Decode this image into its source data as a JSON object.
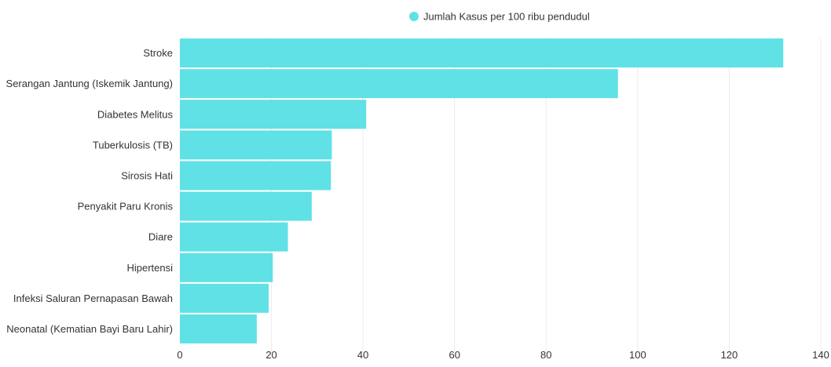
{
  "chart_data": {
    "type": "bar",
    "orientation": "horizontal",
    "categories": [
      "Stroke",
      "Serangan Jantung (Iskemik Jantung)",
      "Diabetes Melitus",
      "Tuberkulosis (TB)",
      "Sirosis Hati",
      "Penyakit Paru Kronis",
      "Diare",
      "Hipertensi",
      "Infeksi Saluran Pernapasan Bawah",
      "Neonatal (Kematian Bayi Baru Lahir)"
    ],
    "series": [
      {
        "name": "Jumlah Kasus per 100 ribu pendudul",
        "color": "#5fe1e6",
        "values": [
          131.8,
          95.7,
          40.7,
          33.2,
          33.0,
          28.8,
          23.6,
          20.3,
          19.4,
          16.8
        ]
      }
    ],
    "title": "",
    "xlabel": "",
    "ylabel": "",
    "xlim": [
      0,
      140
    ],
    "xticks": [
      0,
      20,
      40,
      60,
      80,
      100,
      120,
      140
    ],
    "grid": true,
    "legend_position": "top-center"
  }
}
